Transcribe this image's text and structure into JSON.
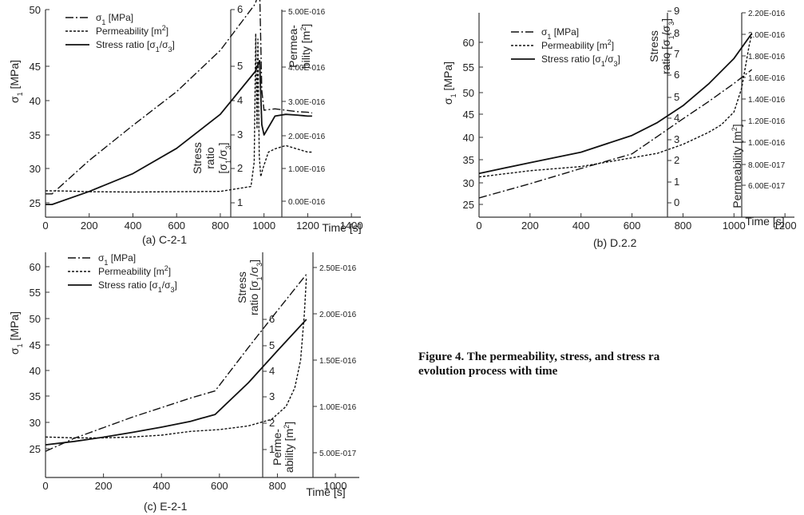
{
  "figure_caption_line1": "Figure 4. The permeability, stress, and stress ra",
  "figure_caption_line2": "evolution process with time",
  "chart_data": [
    {
      "type": "line",
      "panel": "a",
      "caption": "(a) C-2-1",
      "x_label": "Time [s]",
      "x_ticks": [
        "0",
        "200",
        "400",
        "600",
        "800",
        "1000",
        "1200",
        "1400"
      ],
      "xlim": [
        0,
        1400
      ],
      "y_axes": [
        {
          "key": "s1",
          "title": "σ₁ [MPa]",
          "ticks": [
            "25",
            "30",
            "35",
            "40",
            "45",
            "50"
          ],
          "lim": [
            23,
            50
          ]
        },
        {
          "key": "ratio",
          "title": "Stress ratio [σ₁/σ₃]",
          "ticks": [
            "1",
            "2",
            "3",
            "4",
            "5",
            "6"
          ],
          "lim": [
            0.5,
            6
          ]
        },
        {
          "key": "perm",
          "title": "Permea-bility [m²]",
          "ticks": [
            "0.00E-016",
            "1.00E-016",
            "2.00E-016",
            "3.00E-016",
            "4.00E-016",
            "5.00E-016"
          ],
          "lim": [
            -4e-17,
            5e-16
          ]
        }
      ],
      "legend": [
        "σ₁ [MPa]",
        "Permeability [m²]",
        "Stress ratio [σ₁/σ₃]"
      ],
      "series": [
        {
          "name": "σ₁ [MPa]",
          "axis": "s1",
          "dash": "10,3,2,3",
          "x": [
            0,
            30,
            200,
            400,
            600,
            800,
            960,
            980,
            990,
            1000,
            1050,
            1100,
            1150,
            1200,
            1220
          ],
          "y": [
            26.3,
            26.3,
            31.2,
            36.4,
            41.3,
            46.4,
            50.5,
            51.8,
            41.5,
            38.6,
            38.8,
            38.6,
            38.4,
            38.3,
            38.2
          ]
        },
        {
          "name": "Permeability [m²]",
          "axis": "perm",
          "dash": "3,2",
          "x": [
            0,
            100,
            200,
            400,
            600,
            800,
            940,
            955,
            962,
            968,
            972,
            978,
            985,
            995,
            1020,
            1050,
            1100,
            1150,
            1200,
            1220
          ],
          "y": [
            3.2e-17,
            3.1e-17,
            2.9e-17,
            2.8e-17,
            2.9e-17,
            3e-17,
            4.5e-17,
            1.2e-16,
            4.6e-16,
            2.2e-16,
            4.5e-16,
            1.4e-16,
            7.5e-17,
            1e-16,
            1.5e-16,
            1.6e-16,
            1.7e-16,
            1.6e-16,
            1.5e-16,
            1.5e-16
          ]
        },
        {
          "name": "Stress ratio [σ₁/σ₃]",
          "axis": "ratio",
          "dash": "",
          "x": [
            0,
            30,
            200,
            400,
            600,
            800,
            960,
            980,
            990,
            1000,
            1050,
            1100,
            1150,
            1200,
            1220
          ],
          "y": [
            0.95,
            0.95,
            1.33,
            1.85,
            2.6,
            3.6,
            4.85,
            5.1,
            3.3,
            3.0,
            3.55,
            3.6,
            3.58,
            3.55,
            3.55
          ]
        }
      ]
    },
    {
      "type": "line",
      "panel": "b",
      "caption": "(b) D.2.2",
      "x_label": "Time [s]",
      "x_ticks": [
        "0",
        "200",
        "400",
        "600",
        "800",
        "1000",
        "1200"
      ],
      "xlim": [
        0,
        1200
      ],
      "y_axes": [
        {
          "key": "s1",
          "title": "σ₁ [MPa]",
          "ticks": [
            "25",
            "30",
            "35",
            "40",
            "45",
            "50",
            "55",
            "60"
          ],
          "lim": [
            23,
            62
          ]
        },
        {
          "key": "ratio",
          "title": "Stress ratio [σ₁/σ₃]",
          "ticks": [
            "0",
            "1",
            "2",
            "3",
            "4",
            "5",
            "6",
            "7",
            "8",
            "9"
          ],
          "lim": [
            0,
            9
          ]
        },
        {
          "key": "perm",
          "title": "Permeability [m²]",
          "ticks": [
            "6.00E-017",
            "8.00E-017",
            "1.00E-016",
            "1.20E-016",
            "1.40E-016",
            "1.60E-016",
            "1.80E-016",
            "2.00E-016",
            "2.20E-016"
          ],
          "lim": [
            6e-17,
            2.2e-16
          ]
        }
      ],
      "legend": [
        "σ₁ [MPa]",
        "Permeability [m²]",
        "Stress ratio [σ₁/σ₃]"
      ],
      "series": [
        {
          "name": "σ₁ [MPa]",
          "axis": "s1",
          "dash": "10,3,2,3",
          "x": [
            0,
            200,
            400,
            600,
            700,
            800,
            900,
            1000,
            1070
          ],
          "y": [
            26.5,
            29.8,
            33.1,
            36.3,
            40.2,
            44.0,
            47.9,
            51.8,
            54.5
          ]
        },
        {
          "name": "Permeability [m²]",
          "axis": "perm",
          "dash": "3,2",
          "x": [
            0,
            200,
            400,
            600,
            700,
            800,
            900,
            950,
            1000,
            1030,
            1060,
            1070
          ],
          "y": [
            6.8e-17,
            7.4e-17,
            7.8e-17,
            8.6e-17,
            9e-17,
            9.8e-17,
            1.09e-16,
            1.16e-16,
            1.28e-16,
            1.5e-16,
            1.9e-16,
            2e-16
          ]
        },
        {
          "name": "Stress ratio [σ₁/σ₃]",
          "axis": "ratio",
          "dash": "",
          "x": [
            0,
            200,
            400,
            600,
            700,
            800,
            900,
            1000,
            1070
          ],
          "y": [
            1.4,
            1.9,
            2.4,
            3.2,
            3.8,
            4.6,
            5.6,
            6.8,
            8.0
          ]
        }
      ]
    },
    {
      "type": "line",
      "panel": "c",
      "caption": "(c) E-2-1",
      "x_label": "Time [s]",
      "x_ticks": [
        "0",
        "200",
        "400",
        "600",
        "800",
        "1000"
      ],
      "xlim": [
        0,
        1050
      ],
      "y_axes": [
        {
          "key": "s1",
          "title": "σ₁ [MPa]",
          "ticks": [
            "25",
            "30",
            "35",
            "40",
            "45",
            "50",
            "55",
            "60"
          ],
          "lim": [
            22,
            62
          ]
        },
        {
          "key": "ratio",
          "title": "Stress ratio [σ₁/σ₃]",
          "ticks": [
            "1",
            "2",
            "3",
            "4",
            "5",
            "6"
          ],
          "lim": [
            0.5,
            6.5
          ]
        },
        {
          "key": "perm",
          "title": "Perme-ability [m²]",
          "ticks": [
            "5.00E-017",
            "1.00E-016",
            "1.50E-016",
            "2.00E-016",
            "2.50E-016"
          ],
          "lim": [
            3e-17,
            2.75e-16
          ]
        }
      ],
      "legend": [
        "σ₁ [MPa]",
        "Permeability [m²]",
        "Stress ratio [σ₁/σ₃]"
      ],
      "series": [
        {
          "name": "σ₁ [MPa]",
          "axis": "s1",
          "dash": "10,3,2,3",
          "x": [
            0,
            100,
            200,
            300,
            400,
            500,
            585,
            700,
            800,
            900
          ],
          "y": [
            24.5,
            27.0,
            29.0,
            31.0,
            32.8,
            34.6,
            36.0,
            44.5,
            51.5,
            58.5
          ]
        },
        {
          "name": "Permeability [m²]",
          "axis": "perm",
          "dash": "3,2",
          "x": [
            0,
            100,
            200,
            300,
            400,
            500,
            600,
            700,
            780,
            830,
            860,
            880,
            893,
            900
          ],
          "y": [
            6.7e-17,
            6.6e-17,
            6.6e-17,
            6.7e-17,
            6.9e-17,
            7.3e-17,
            7.5e-17,
            7.9e-17,
            8.6e-17,
            1e-16,
            1.2e-16,
            1.5e-16,
            2e-16,
            2.4e-16
          ]
        },
        {
          "name": "Stress ratio [σ₁/σ₃]",
          "axis": "ratio",
          "dash": "",
          "x": [
            0,
            100,
            200,
            300,
            400,
            500,
            585,
            700,
            800,
            900
          ],
          "y": [
            1.18,
            1.31,
            1.47,
            1.65,
            1.85,
            2.07,
            2.33,
            3.55,
            4.8,
            6.0
          ]
        }
      ]
    }
  ]
}
